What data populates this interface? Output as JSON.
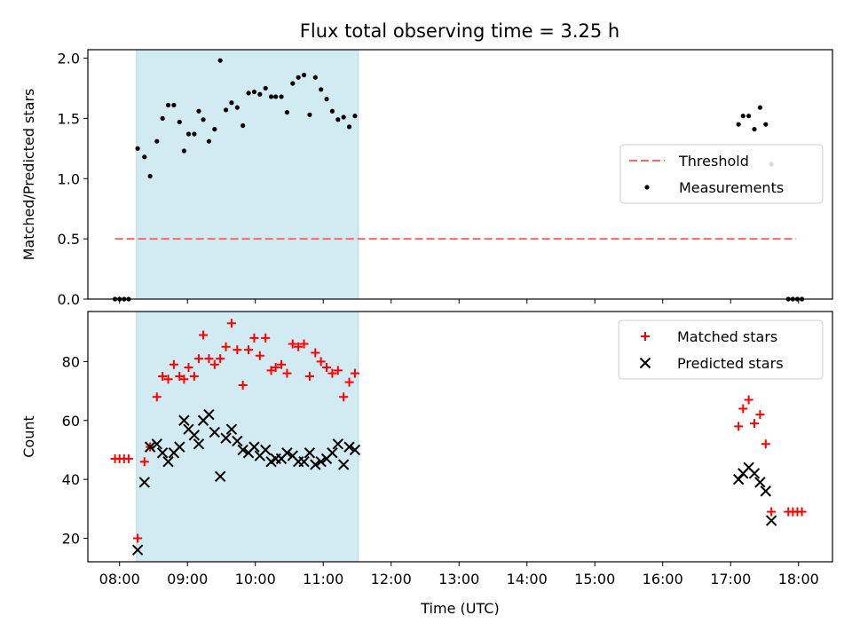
{
  "chart_data": [
    {
      "type": "scatter",
      "title": "Flux total observing time = 3.25 h",
      "xlabel": "",
      "ylabel": "Matched/Predicted stars",
      "xlim": [
        "07:32",
        "18:30"
      ],
      "ylim": [
        0,
        2.07
      ],
      "yticks": [
        0.0,
        0.5,
        1.0,
        1.5,
        2.0
      ],
      "ytick_labels": [
        "0.0",
        "0.5",
        "1.0",
        "1.5",
        "2.0"
      ],
      "highlight_span": [
        "08:15",
        "11:31"
      ],
      "highlight_color": "#add8e6",
      "legend_position": "center-right",
      "threshold": {
        "name": "Threshold",
        "y": 0.5,
        "x_range": [
          "07:56",
          "17:58"
        ],
        "color": "#ff6666",
        "style": "dashed"
      },
      "series": [
        {
          "name": "Measurements",
          "color": "#000000",
          "marker": "dot",
          "points": [
            [
              "07:56",
              0.0
            ],
            [
              "08:00",
              0.0
            ],
            [
              "08:04",
              0.0
            ],
            [
              "08:08",
              0.0
            ],
            [
              "08:16",
              1.25
            ],
            [
              "08:22",
              1.18
            ],
            [
              "08:27",
              1.02
            ],
            [
              "08:33",
              1.31
            ],
            [
              "08:38",
              1.5
            ],
            [
              "08:43",
              1.61
            ],
            [
              "08:48",
              1.61
            ],
            [
              "08:53",
              1.47
            ],
            [
              "08:57",
              1.23
            ],
            [
              "09:01",
              1.37
            ],
            [
              "09:06",
              1.37
            ],
            [
              "09:10",
              1.56
            ],
            [
              "09:14",
              1.49
            ],
            [
              "09:19",
              1.31
            ],
            [
              "09:24",
              1.41
            ],
            [
              "09:29",
              1.98
            ],
            [
              "09:34",
              1.57
            ],
            [
              "09:39",
              1.63
            ],
            [
              "09:44",
              1.59
            ],
            [
              "09:49",
              1.44
            ],
            [
              "09:54",
              1.71
            ],
            [
              "09:59",
              1.72
            ],
            [
              "10:04",
              1.7
            ],
            [
              "10:09",
              1.75
            ],
            [
              "10:14",
              1.68
            ],
            [
              "10:18",
              1.68
            ],
            [
              "10:23",
              1.68
            ],
            [
              "10:28",
              1.55
            ],
            [
              "10:33",
              1.79
            ],
            [
              "10:38",
              1.84
            ],
            [
              "10:43",
              1.86
            ],
            [
              "10:48",
              1.53
            ],
            [
              "10:53",
              1.84
            ],
            [
              "10:58",
              1.74
            ],
            [
              "11:03",
              1.66
            ],
            [
              "11:08",
              1.56
            ],
            [
              "11:13",
              1.49
            ],
            [
              "11:18",
              1.51
            ],
            [
              "11:23",
              1.43
            ],
            [
              "11:28",
              1.52
            ],
            [
              "17:07",
              1.45
            ],
            [
              "17:11",
              1.52
            ],
            [
              "17:16",
              1.52
            ],
            [
              "17:21",
              1.41
            ],
            [
              "17:26",
              1.59
            ],
            [
              "17:31",
              1.45
            ],
            [
              "17:36",
              1.12
            ],
            [
              "17:51",
              0.0
            ],
            [
              "17:55",
              0.0
            ],
            [
              "17:59",
              0.0
            ],
            [
              "18:03",
              0.0
            ]
          ]
        }
      ]
    },
    {
      "type": "scatter",
      "title": "",
      "xlabel": "Time (UTC)",
      "ylabel": "Count",
      "xlim": [
        "07:32",
        "18:30"
      ],
      "ylim": [
        12,
        97
      ],
      "xticks": [
        "08:00",
        "09:00",
        "10:00",
        "11:00",
        "12:00",
        "13:00",
        "14:00",
        "15:00",
        "16:00",
        "17:00",
        "18:00"
      ],
      "yticks": [
        20,
        40,
        60,
        80
      ],
      "ytick_labels": [
        "20",
        "40",
        "60",
        "80"
      ],
      "highlight_span": [
        "08:15",
        "11:31"
      ],
      "highlight_color": "#add8e6",
      "legend_position": "top-right",
      "series": [
        {
          "name": "Matched stars",
          "color": "#ff0000",
          "marker": "plus",
          "points": [
            [
              "07:56",
              47
            ],
            [
              "08:00",
              47
            ],
            [
              "08:04",
              47
            ],
            [
              "08:08",
              47
            ],
            [
              "08:16",
              20
            ],
            [
              "08:22",
              46
            ],
            [
              "08:27",
              51
            ],
            [
              "08:33",
              68
            ],
            [
              "08:38",
              75
            ],
            [
              "08:43",
              74
            ],
            [
              "08:48",
              79
            ],
            [
              "08:53",
              75
            ],
            [
              "08:57",
              74
            ],
            [
              "09:01",
              78
            ],
            [
              "09:06",
              75
            ],
            [
              "09:10",
              81
            ],
            [
              "09:14",
              89
            ],
            [
              "09:19",
              81
            ],
            [
              "09:24",
              79
            ],
            [
              "09:29",
              81
            ],
            [
              "09:34",
              85
            ],
            [
              "09:39",
              93
            ],
            [
              "09:44",
              84
            ],
            [
              "09:49",
              72
            ],
            [
              "09:54",
              84
            ],
            [
              "09:59",
              88
            ],
            [
              "10:04",
              82
            ],
            [
              "10:09",
              88
            ],
            [
              "10:14",
              77
            ],
            [
              "10:18",
              78
            ],
            [
              "10:23",
              79
            ],
            [
              "10:28",
              76
            ],
            [
              "10:33",
              86
            ],
            [
              "10:38",
              85
            ],
            [
              "10:43",
              86
            ],
            [
              "10:48",
              75
            ],
            [
              "10:53",
              83
            ],
            [
              "10:58",
              80
            ],
            [
              "11:03",
              78
            ],
            [
              "11:08",
              76
            ],
            [
              "11:13",
              77
            ],
            [
              "11:18",
              68
            ],
            [
              "11:23",
              73
            ],
            [
              "11:28",
              76
            ],
            [
              "17:07",
              58
            ],
            [
              "17:11",
              64
            ],
            [
              "17:16",
              67
            ],
            [
              "17:21",
              59
            ],
            [
              "17:26",
              62
            ],
            [
              "17:31",
              52
            ],
            [
              "17:36",
              29
            ],
            [
              "17:51",
              29
            ],
            [
              "17:55",
              29
            ],
            [
              "17:59",
              29
            ],
            [
              "18:03",
              29
            ]
          ]
        },
        {
          "name": "Predicted stars",
          "color": "#000000",
          "marker": "x",
          "points": [
            [
              "08:16",
              16
            ],
            [
              "08:22",
              39
            ],
            [
              "08:27",
              51
            ],
            [
              "08:33",
              52
            ],
            [
              "08:38",
              49
            ],
            [
              "08:43",
              46
            ],
            [
              "08:48",
              49
            ],
            [
              "08:53",
              51
            ],
            [
              "08:57",
              60
            ],
            [
              "09:01",
              57
            ],
            [
              "09:06",
              55
            ],
            [
              "09:10",
              52
            ],
            [
              "09:14",
              60
            ],
            [
              "09:19",
              62
            ],
            [
              "09:24",
              56
            ],
            [
              "09:29",
              41
            ],
            [
              "09:34",
              54
            ],
            [
              "09:39",
              57
            ],
            [
              "09:44",
              53
            ],
            [
              "09:49",
              50
            ],
            [
              "09:54",
              49
            ],
            [
              "09:59",
              51
            ],
            [
              "10:04",
              48
            ],
            [
              "10:09",
              50
            ],
            [
              "10:14",
              46
            ],
            [
              "10:18",
              47
            ],
            [
              "10:23",
              47
            ],
            [
              "10:28",
              49
            ],
            [
              "10:33",
              48
            ],
            [
              "10:38",
              46
            ],
            [
              "10:43",
              46
            ],
            [
              "10:48",
              49
            ],
            [
              "10:53",
              45
            ],
            [
              "10:58",
              46
            ],
            [
              "11:03",
              47
            ],
            [
              "11:08",
              49
            ],
            [
              "11:13",
              52
            ],
            [
              "11:18",
              45
            ],
            [
              "11:23",
              51
            ],
            [
              "11:28",
              50
            ],
            [
              "17:07",
              40
            ],
            [
              "17:11",
              42
            ],
            [
              "17:16",
              44
            ],
            [
              "17:21",
              42
            ],
            [
              "17:26",
              39
            ],
            [
              "17:31",
              36
            ],
            [
              "17:36",
              26
            ]
          ]
        }
      ]
    }
  ]
}
